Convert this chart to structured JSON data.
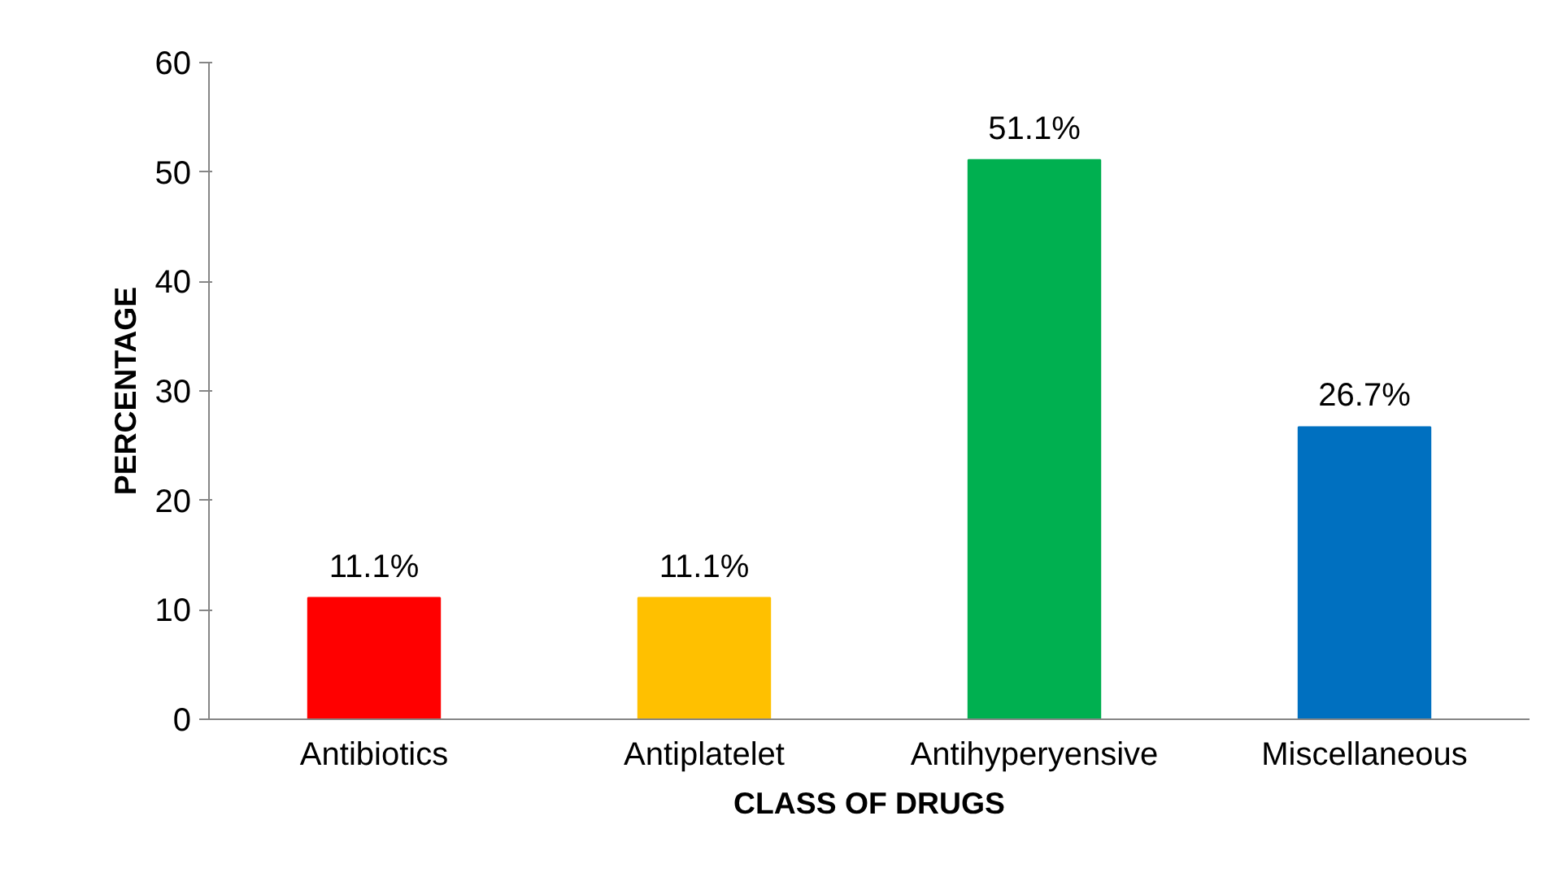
{
  "chart_data": {
    "type": "bar",
    "xlabel": "CLASS OF DRUGS",
    "ylabel": "PERCENTAGE",
    "categories": [
      "Antibiotics",
      "Antiplatelet",
      "Antihyperyensive",
      "Miscellaneous"
    ],
    "values": [
      11.1,
      11.1,
      51.1,
      26.7
    ],
    "colors": [
      "#ff0000",
      "#ffc000",
      "#00b050",
      "#0070c0"
    ],
    "value_labels": [
      "11.1%",
      "11.1%",
      "51.1%",
      "26.7%"
    ],
    "ylim": [
      0,
      60
    ],
    "yticks": [
      0,
      10,
      20,
      30,
      40,
      50,
      60
    ],
    "grid": false
  }
}
